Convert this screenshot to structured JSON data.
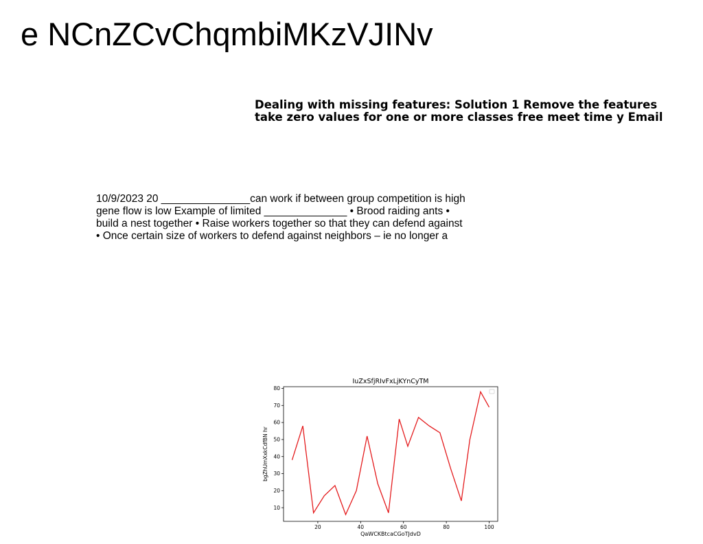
{
  "title": "e NCnZCvChqmbiMKzVJINv",
  "bold_text": {
    "lines": [
      "Dealing with missing features: Solution 1 Remove the features",
      "take zero values for one or more classes free meet time y Email"
    ]
  },
  "body_text": {
    "lines": [
      "10/9/2023 20 _______________can work if between group competition is high",
      "gene flow is low Example of limited ______________ • Brood raiding ants •",
      "build a nest together • Raise workers together so that they can defend against",
      "• Once certain size of workers to defend against neighbors – ie no longer a"
    ]
  },
  "chart_data": {
    "type": "line",
    "title": "IuZxSfjRIvFxLjKYnCyTM",
    "xlabel": "QaWCKBtcaCGoTJdvD",
    "ylabel": "bgZhUmXxkCdfBN hr",
    "x": [
      8,
      13,
      18,
      23,
      28,
      33,
      38,
      43,
      48,
      53,
      58,
      62,
      67,
      72,
      77,
      82,
      87,
      91,
      96,
      100
    ],
    "series": [
      {
        "color": "#e41a1c",
        "values": [
          38,
          58,
          7,
          17,
          23,
          6,
          20,
          52,
          24,
          7,
          62,
          46,
          63,
          58,
          54,
          33,
          14,
          50,
          78,
          69
        ]
      }
    ],
    "xlim": [
      4,
      104
    ],
    "ylim": [
      2,
      81
    ],
    "xticks": [
      20,
      40,
      60,
      80,
      100
    ],
    "yticks": [
      10,
      20,
      30,
      40,
      50,
      60,
      70,
      80
    ],
    "legend": "top-right",
    "grid": false
  }
}
